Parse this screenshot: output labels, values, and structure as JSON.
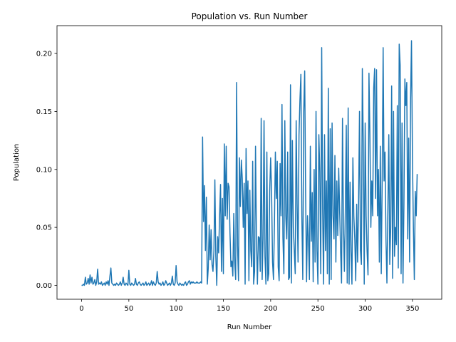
{
  "chart_data": {
    "type": "line",
    "title": "Population vs. Run Number",
    "xlabel": "Run Number",
    "ylabel": "Population",
    "xlim": [
      -26,
      381
    ],
    "ylim": [
      -0.012,
      0.224
    ],
    "xticks": [
      0,
      50,
      100,
      150,
      200,
      250,
      300,
      350
    ],
    "yticks": [
      0.0,
      0.05,
      0.1,
      0.15,
      0.2
    ],
    "ytick_labels": [
      "0.00",
      "0.05",
      "0.10",
      "0.15",
      "0.20"
    ],
    "grid": false,
    "line_color": "#1f77b4",
    "x_start": 0,
    "x_step": 1,
    "series": [
      {
        "values": [
          0.0,
          0.0,
          0.001,
          0.0,
          0.007,
          0.001,
          0.002,
          0.006,
          0.001,
          0.009,
          0.002,
          0.007,
          0.001,
          0.002,
          0.005,
          0.0,
          0.003,
          0.014,
          0.001,
          0.002,
          0.001,
          0.003,
          0.0,
          0.001,
          0.002,
          0.0,
          0.003,
          0.001,
          0.004,
          0.0,
          0.008,
          0.015,
          0.002,
          0.001,
          0.0,
          0.001,
          0.0,
          0.002,
          0.001,
          0.0,
          0.001,
          0.003,
          0.0,
          0.002,
          0.007,
          0.001,
          0.0,
          0.002,
          0.001,
          0.0,
          0.013,
          0.001,
          0.0,
          0.002,
          0.001,
          0.0,
          0.001,
          0.006,
          0.001,
          0.0,
          0.002,
          0.003,
          0.001,
          0.0,
          0.001,
          0.002,
          0.0,
          0.001,
          0.003,
          0.0,
          0.001,
          0.002,
          0.0,
          0.001,
          0.004,
          0.0,
          0.003,
          0.001,
          0.0,
          0.002,
          0.012,
          0.003,
          0.001,
          0.002,
          0.0,
          0.001,
          0.003,
          0.0,
          0.001,
          0.004,
          0.002,
          0.0,
          0.001,
          0.002,
          0.0,
          0.002,
          0.008,
          0.001,
          0.0,
          0.002,
          0.017,
          0.003,
          0.001,
          0.0,
          0.002,
          0.001,
          0.0,
          0.001,
          0.0,
          0.002,
          0.003,
          0.0,
          0.001,
          0.003,
          0.004,
          0.001,
          0.003,
          0.002,
          0.003,
          0.002,
          0.002,
          0.002,
          0.003,
          0.002,
          0.002,
          0.002,
          0.003,
          0.002,
          0.128,
          0.055,
          0.086,
          0.03,
          0.076,
          0.001,
          0.015,
          0.052,
          0.022,
          0.048,
          0.018,
          0.012,
          0.03,
          0.091,
          0.025,
          0.0,
          0.042,
          0.028,
          0.06,
          0.087,
          0.012,
          0.075,
          0.01,
          0.122,
          0.06,
          0.12,
          0.057,
          0.088,
          0.085,
          0.045,
          0.016,
          0.021,
          0.008,
          0.062,
          0.02,
          0.005,
          0.175,
          0.034,
          0.004,
          0.11,
          0.068,
          0.108,
          0.092,
          0.05,
          0.088,
          0.001,
          0.118,
          0.062,
          0.09,
          0.004,
          0.082,
          0.03,
          0.016,
          0.107,
          0.001,
          0.012,
          0.12,
          0.04,
          0.001,
          0.042,
          0.041,
          0.012,
          0.144,
          0.005,
          0.04,
          0.142,
          0.025,
          0.001,
          0.115,
          0.004,
          0.01,
          0.081,
          0.11,
          0.08,
          0.02,
          0.005,
          0.053,
          0.115,
          0.075,
          0.107,
          0.016,
          0.004,
          0.105,
          0.06,
          0.156,
          0.041,
          0.01,
          0.142,
          0.06,
          0.04,
          0.115,
          0.005,
          0.007,
          0.173,
          0.002,
          0.125,
          0.05,
          0.03,
          0.01,
          0.142,
          0.07,
          0.02,
          0.13,
          0.16,
          0.182,
          0.06,
          0.005,
          0.15,
          0.185,
          0.08,
          0.003,
          0.06,
          0.04,
          0.005,
          0.12,
          0.038,
          0.08,
          0.003,
          0.1,
          0.02,
          0.15,
          0.03,
          0.001,
          0.13,
          0.098,
          0.01,
          0.205,
          0.064,
          0.001,
          0.13,
          0.03,
          0.09,
          0.01,
          0.17,
          0.001,
          0.135,
          0.005,
          0.14,
          0.06,
          0.04,
          0.112,
          0.02,
          0.09,
          0.043,
          0.101,
          0.064,
          0.03,
          0.002,
          0.144,
          0.052,
          0.012,
          0.064,
          0.138,
          0.002,
          0.153,
          0.001,
          0.089,
          0.029,
          0.001,
          0.11,
          0.06,
          0.04,
          0.004,
          0.07,
          0.02,
          0.07,
          0.15,
          0.03,
          0.018,
          0.187,
          0.121,
          0.001,
          0.14,
          0.06,
          0.03,
          0.009,
          0.183,
          0.13,
          0.05,
          0.09,
          0.06,
          0.17,
          0.187,
          0.075,
          0.186,
          0.06,
          0.1,
          0.02,
          0.12,
          0.01,
          0.091,
          0.205,
          0.09,
          0.115,
          0.04,
          0.002,
          0.065,
          0.13,
          0.018,
          0.05,
          0.172,
          0.006,
          0.15,
          0.025,
          0.05,
          0.035,
          0.155,
          0.015,
          0.208,
          0.19,
          0.01,
          0.14,
          0.002,
          0.07,
          0.178,
          0.155,
          0.175,
          0.04,
          0.127,
          0.02,
          0.16,
          0.211,
          0.11,
          0.05,
          0.005,
          0.081,
          0.06,
          0.096
        ]
      }
    ]
  }
}
